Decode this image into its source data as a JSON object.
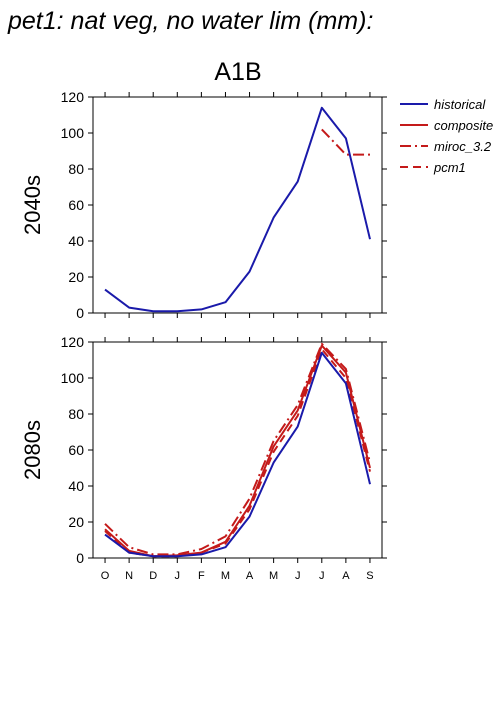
{
  "page_title": "pet1: nat veg, no water lim (mm):",
  "scenario_title": "A1B",
  "legend": [
    {
      "label": "historical",
      "color": "#1a1aaa",
      "dash": "solid"
    },
    {
      "label": "composite",
      "color": "#c41a1a",
      "dash": "solid"
    },
    {
      "label": "miroc_3.2",
      "color": "#c41a1a",
      "dash": "dashdot"
    },
    {
      "label": "pcm1",
      "color": "#c41a1a",
      "dash": "dashed"
    }
  ],
  "chart_data": [
    {
      "type": "line",
      "ylabel": "2040s",
      "ylim": [
        0,
        120
      ],
      "yticks": [
        0,
        20,
        40,
        60,
        80,
        100,
        120
      ],
      "categories": [
        "O",
        "N",
        "D",
        "J",
        "F",
        "M",
        "A",
        "M",
        "J",
        "J",
        "A",
        "S"
      ],
      "show_xtick_labels": false,
      "series": [
        {
          "name": "historical",
          "values": [
            13,
            3,
            1,
            1,
            2,
            6,
            23,
            53,
            73,
            114,
            97,
            41
          ]
        },
        {
          "name": "miroc_3.2",
          "values": [
            null,
            null,
            null,
            null,
            null,
            null,
            null,
            null,
            null,
            102,
            88,
            88
          ]
        }
      ]
    },
    {
      "type": "line",
      "ylabel": "2080s",
      "ylim": [
        0,
        120
      ],
      "yticks": [
        0,
        20,
        40,
        60,
        80,
        100,
        120
      ],
      "categories": [
        "O",
        "N",
        "D",
        "J",
        "F",
        "M",
        "A",
        "M",
        "J",
        "J",
        "A",
        "S"
      ],
      "show_xtick_labels": true,
      "series": [
        {
          "name": "historical",
          "values": [
            13,
            3,
            1,
            1,
            2,
            6,
            23,
            53,
            73,
            114,
            97,
            41
          ]
        },
        {
          "name": "composite",
          "values": [
            16,
            4,
            1,
            1.5,
            3,
            9,
            29,
            62,
            82,
            118,
            103,
            50
          ]
        },
        {
          "name": "miroc_3.2",
          "values": [
            19,
            6,
            2,
            2,
            5,
            12,
            33,
            65,
            85,
            119,
            105,
            53
          ]
        },
        {
          "name": "pcm1",
          "values": [
            15,
            3,
            1,
            1,
            3,
            8,
            27,
            59,
            79,
            116,
            100,
            48
          ]
        }
      ]
    }
  ]
}
